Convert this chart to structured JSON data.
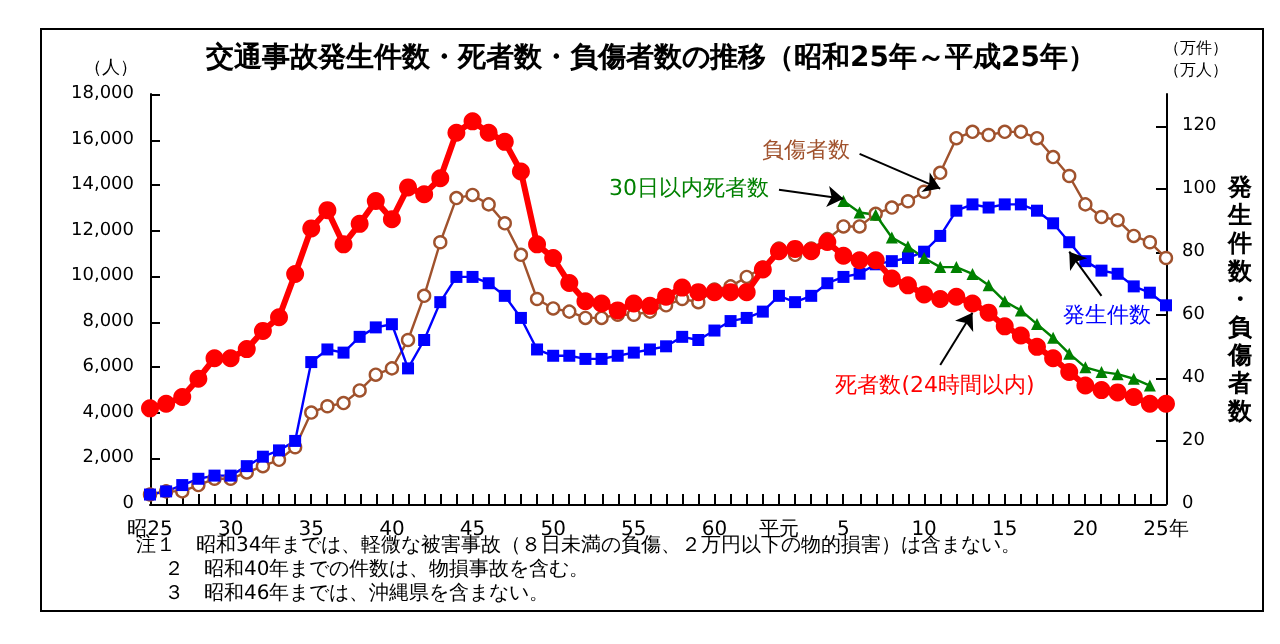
{
  "chart_data": {
    "type": "line",
    "title": "交通事故発生件数・死者数・負傷者数の推移（昭和25年～平成25年）",
    "ylabel": "（人）",
    "y2label": "発生件数・負傷者数",
    "annotations": [
      "（万件）",
      "（万人）",
      "注１　昭和34年までは、軽微な被害事故（８日未満の負傷、２万円以下の物的損害）は含まない。",
      "２　昭和40年までの件数は、物損事故を含む。",
      "３　昭和46年までは、沖縄県を含まない。"
    ],
    "categories": [
      "昭25",
      null,
      null,
      null,
      null,
      "30",
      null,
      null,
      null,
      null,
      "35",
      null,
      null,
      null,
      null,
      "40",
      null,
      null,
      null,
      null,
      "45",
      null,
      null,
      null,
      null,
      "50",
      null,
      null,
      null,
      null,
      "55",
      null,
      null,
      null,
      null,
      "60",
      null,
      null,
      null,
      "平元",
      null,
      null,
      null,
      "5",
      null,
      null,
      null,
      null,
      "10",
      null,
      null,
      null,
      null,
      "15",
      null,
      null,
      null,
      null,
      "20",
      null,
      null,
      null,
      null,
      "25年"
    ],
    "ylim": [
      0,
      18000
    ],
    "yticks": [
      {
        "value": 0,
        "label": "0"
      },
      {
        "value": 2000,
        "label": "2,000"
      },
      {
        "value": 4000,
        "label": "4,000"
      },
      {
        "value": 6000,
        "label": "6,000"
      },
      {
        "value": 8000,
        "label": "8,000"
      },
      {
        "value": 10000,
        "label": "10,000"
      },
      {
        "value": 12000,
        "label": "12,000"
      },
      {
        "value": 14000,
        "label": "14,000"
      },
      {
        "value": 16000,
        "label": "16,000"
      },
      {
        "value": 18000,
        "label": "18,000"
      }
    ],
    "y2lim": [
      0,
      130
    ],
    "y2ticks": [
      0,
      20,
      40,
      60,
      80,
      100,
      120
    ],
    "grid": false,
    "legend": false,
    "line_style": "solid",
    "series": [
      {
        "name": "負傷者数",
        "color": "#a0522d",
        "axis": "y2",
        "marker": "circle",
        "values": [
          3,
          4,
          4,
          6,
          8,
          8,
          10,
          12,
          14,
          18,
          29,
          31,
          32,
          36,
          41,
          43,
          52,
          66,
          83,
          97,
          98,
          95,
          89,
          79,
          65,
          62,
          61,
          59,
          59,
          60,
          60,
          61,
          63,
          65,
          64,
          68,
          69,
          72,
          75,
          81,
          79,
          81,
          84,
          88,
          88,
          92,
          94,
          96,
          99,
          105,
          116,
          118,
          117,
          118,
          118,
          116,
          110,
          104,
          95,
          91,
          90,
          85,
          83,
          78
        ]
      },
      {
        "name": "発生件数",
        "color": "#0000ff",
        "axis": "y2",
        "marker": "square",
        "values": [
          3,
          4,
          6,
          8,
          9,
          9,
          12,
          15,
          17,
          20,
          45,
          49,
          48,
          53,
          56,
          57,
          43,
          52,
          64,
          72,
          72,
          70,
          66,
          59,
          49,
          47,
          47,
          46,
          46,
          47,
          48,
          49,
          50,
          53,
          52,
          55,
          58,
          59,
          61,
          66,
          64,
          66,
          70,
          72,
          73,
          76,
          77,
          78,
          80,
          85,
          93,
          95,
          94,
          95,
          95,
          93,
          89,
          83,
          77,
          74,
          73,
          69,
          67,
          63
        ]
      },
      {
        "name": "30日以内死者数",
        "color": "#008000",
        "marker": "triangle",
        "values": [
          null,
          null,
          null,
          null,
          null,
          null,
          null,
          null,
          null,
          null,
          null,
          null,
          null,
          null,
          null,
          null,
          null,
          null,
          null,
          null,
          null,
          null,
          null,
          null,
          null,
          null,
          null,
          null,
          null,
          null,
          null,
          null,
          null,
          null,
          null,
          null,
          null,
          null,
          null,
          null,
          null,
          null,
          null,
          13300,
          12800,
          12700,
          11700,
          11300,
          10800,
          10400,
          10400,
          10100,
          9600,
          8900,
          8500,
          7900,
          7300,
          6600,
          6000,
          5800,
          5700,
          5500,
          5200,
          null
        ]
      },
      {
        "name": "死者数(24時間以内)",
        "color": "#ff0000",
        "marker": "circle",
        "values": [
          4200,
          4400,
          4700,
          5500,
          6400,
          6400,
          6800,
          7600,
          8200,
          10100,
          12100,
          12900,
          11400,
          12300,
          13300,
          12500,
          13900,
          13600,
          14300,
          16300,
          16800,
          16300,
          15900,
          14600,
          11400,
          10800,
          9700,
          8900,
          8800,
          8500,
          8800,
          8700,
          9100,
          9500,
          9300,
          9300,
          9300,
          9300,
          10300,
          11100,
          11200,
          11100,
          11500,
          10900,
          10700,
          10700,
          9900,
          9600,
          9200,
          9000,
          9100,
          8800,
          8400,
          7800,
          7400,
          6900,
          6400,
          5800,
          5200,
          5000,
          4900,
          4700,
          4400,
          4400
        ]
      }
    ]
  }
}
